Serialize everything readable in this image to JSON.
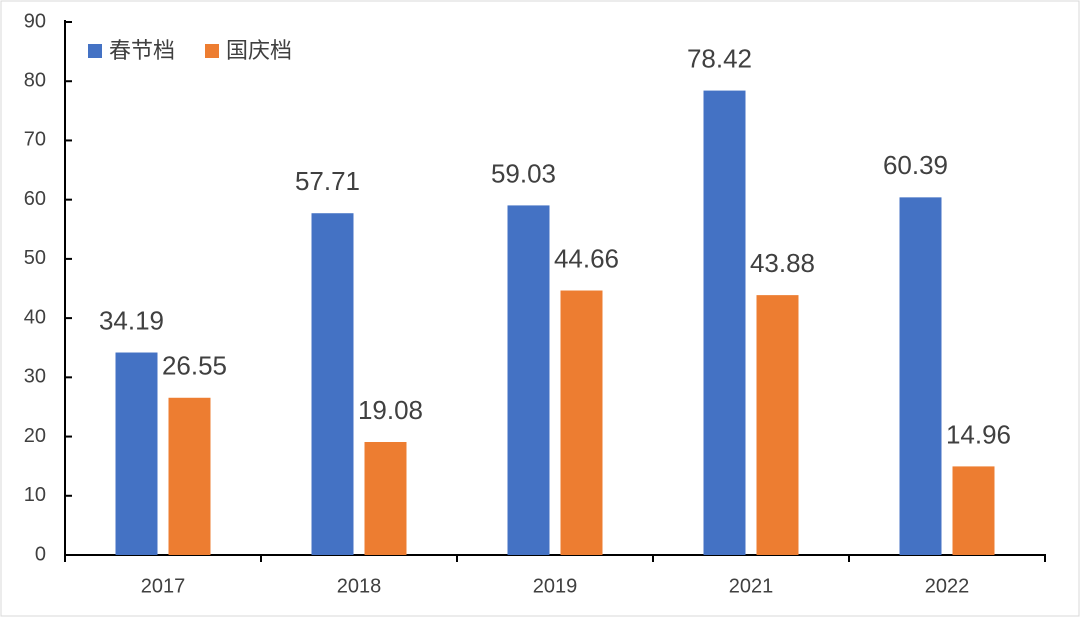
{
  "chart_data": {
    "type": "bar",
    "categories": [
      "2017",
      "2018",
      "2019",
      "2021",
      "2022"
    ],
    "series": [
      {
        "name": "春节档",
        "color": "#4472c4",
        "values": [
          34.19,
          57.71,
          59.03,
          78.42,
          60.39
        ]
      },
      {
        "name": "国庆档",
        "color": "#ed7d31",
        "values": [
          26.55,
          19.08,
          44.66,
          43.88,
          14.96
        ]
      }
    ],
    "ylim": [
      0,
      90
    ],
    "yticks": [
      0,
      10,
      20,
      30,
      40,
      50,
      60,
      70,
      80,
      90
    ],
    "grid": false,
    "legend": "top-left"
  }
}
